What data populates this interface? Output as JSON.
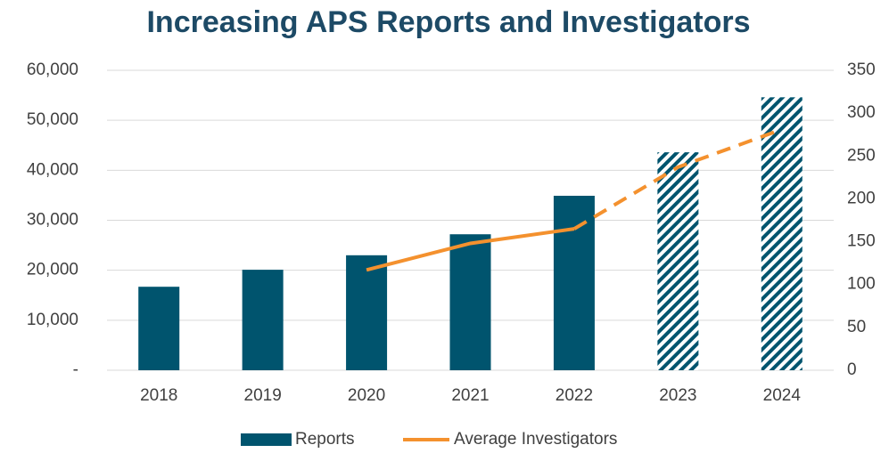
{
  "chart_data": {
    "type": "bar",
    "title": "Increasing APS Reports and Investigators",
    "categories": [
      "2018",
      "2019",
      "2020",
      "2021",
      "2022",
      "2023",
      "2024"
    ],
    "series": [
      {
        "name": "Reports",
        "type": "bar",
        "color": "#00546e",
        "values": [
          16700,
          20100,
          23000,
          27200,
          34900,
          43600,
          54600
        ],
        "styles": [
          "solid",
          "solid",
          "solid",
          "solid",
          "solid",
          "hatched",
          "hatched"
        ]
      },
      {
        "name": "Average Investigators",
        "type": "line",
        "axis": "y2",
        "color": "#f4912e",
        "values": [
          null,
          null,
          117,
          148,
          165,
          237,
          281
        ],
        "styles": [
          "solid",
          "solid",
          "solid",
          "solid",
          "solid",
          "dashed",
          "dashed"
        ]
      }
    ],
    "ylim": [
      0,
      60000
    ],
    "yticks": [
      {
        "value": 0,
        "label": "-"
      },
      {
        "value": 10000,
        "label": "10,000"
      },
      {
        "value": 20000,
        "label": "20,000"
      },
      {
        "value": 30000,
        "label": "30,000"
      },
      {
        "value": 40000,
        "label": "40,000"
      },
      {
        "value": 50000,
        "label": "50,000"
      },
      {
        "value": 60000,
        "label": "60,000"
      }
    ],
    "y2lim": [
      0,
      350
    ],
    "y2ticks": [
      0,
      50,
      100,
      150,
      200,
      250,
      300,
      350
    ],
    "grid": true,
    "legend": "bottom"
  }
}
